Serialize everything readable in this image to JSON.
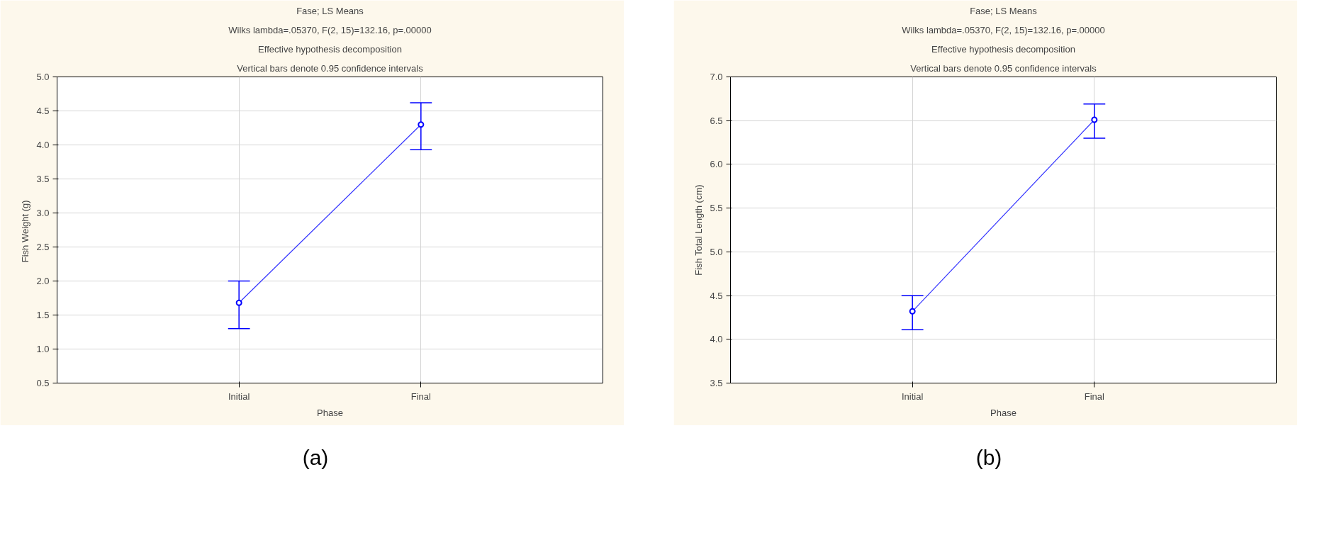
{
  "chart_data": [
    {
      "type": "line",
      "title": "Fase; LS Means",
      "subtitle": "Wilks lambda=.05370, F(2, 15)=132.16, p=.00000",
      "annotations": [
        "Effective hypothesis decomposition",
        "Vertical bars denote 0.95 confidence intervals",
        "(a)"
      ],
      "xlabel": "Phase",
      "ylabel": "Fish Weight  (g)",
      "categories": [
        "Initial",
        "Final"
      ],
      "series": [
        {
          "color": "#0000ff",
          "values": [
            1.68,
            4.3
          ],
          "errors": [
            [
              1.3,
              2.0
            ],
            [
              3.93,
              4.62
            ]
          ]
        }
      ],
      "ylim": [
        0.5,
        5.0
      ],
      "yticks": [
        {
          "value": 0.5,
          "label": "0.5"
        },
        {
          "value": 1,
          "label": "1.0"
        },
        {
          "value": 1.5,
          "label": "1.5"
        },
        {
          "value": 2,
          "label": "2.0"
        },
        {
          "value": 2.5,
          "label": "2.5"
        },
        {
          "value": 3,
          "label": "3.0"
        },
        {
          "value": 3.5,
          "label": "3.5"
        },
        {
          "value": 4,
          "label": "4.0"
        },
        {
          "value": 4.5,
          "label": "4.5"
        },
        {
          "value": 5,
          "label": "5.0"
        }
      ],
      "grid": true,
      "marker": "circle",
      "line_style": "solid"
    },
    {
      "type": "line",
      "title": "Fase; LS Means",
      "subtitle": "Wilks lambda=.05370, F(2, 15)=132.16, p=.00000",
      "annotations": [
        "Effective hypothesis decomposition",
        "Vertical bars denote 0.95 confidence intervals",
        "(b)"
      ],
      "xlabel": "Phase",
      "ylabel": "Fish Total Length (cm)",
      "categories": [
        "Initial",
        "Final"
      ],
      "series": [
        {
          "color": "#0000ff",
          "values": [
            4.32,
            6.51
          ],
          "errors": [
            [
              4.11,
              4.5
            ],
            [
              6.3,
              6.69
            ]
          ]
        }
      ],
      "ylim": [
        3.5,
        7.0
      ],
      "yticks": [
        {
          "value": 3.5,
          "label": "3.5"
        },
        {
          "value": 4,
          "label": "4.0"
        },
        {
          "value": 4.5,
          "label": "4.5"
        },
        {
          "value": 5,
          "label": "5.0"
        },
        {
          "value": 5.5,
          "label": "5.5"
        },
        {
          "value": 6,
          "label": "6.0"
        },
        {
          "value": 6.5,
          "label": "6.5"
        },
        {
          "value": 7,
          "label": "7.0"
        }
      ],
      "grid": true,
      "marker": "circle",
      "line_style": "solid"
    }
  ]
}
